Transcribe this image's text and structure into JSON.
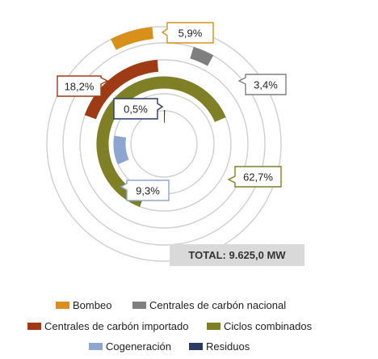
{
  "chart_data": {
    "type": "pie",
    "series": [
      {
        "name": "Bombeo",
        "value": 5.9,
        "label": "5,9%",
        "color": "#d9901b"
      },
      {
        "name": "Centrales de carbón nacional",
        "value": 3.4,
        "label": "3,4%",
        "color": "#7f7f7f"
      },
      {
        "name": "Centrales de carbón importado",
        "value": 18.2,
        "label": "18,2%",
        "color": "#9e3a14"
      },
      {
        "name": "Ciclos combinados",
        "value": 62.7,
        "label": "62,7%",
        "color": "#7f7f26"
      },
      {
        "name": "Cogeneración",
        "value": 9.3,
        "label": "9,3%",
        "color": "#8fa5d1"
      },
      {
        "name": "Residuos",
        "value": 0.5,
        "label": "0,5%",
        "color": "#2b3a63"
      }
    ],
    "total_label": "TOTAL: 9.625,0 MW",
    "legend_position": "bottom"
  }
}
